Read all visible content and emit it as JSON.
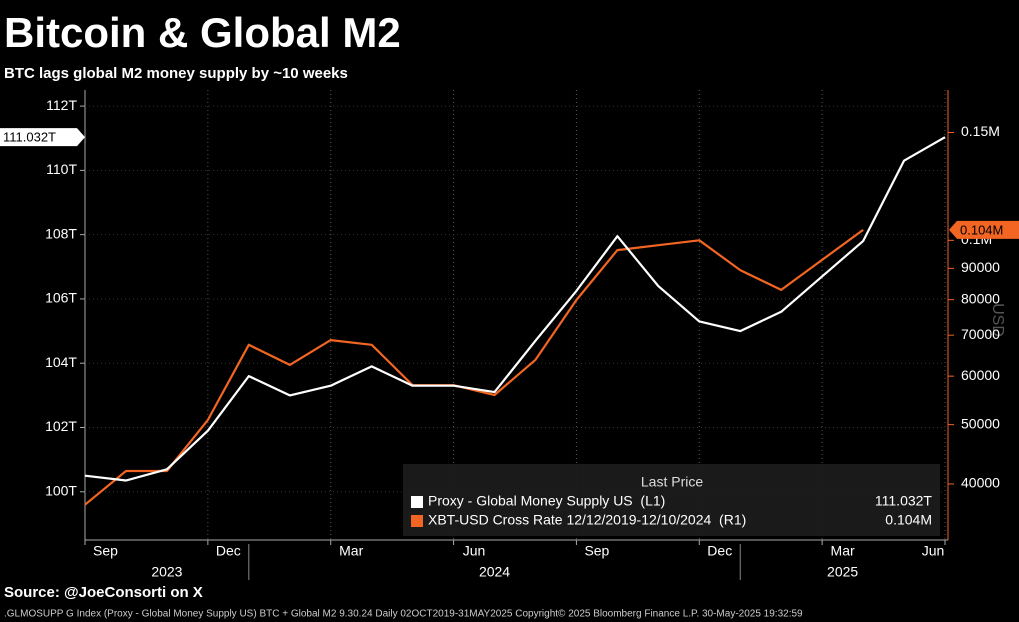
{
  "chart_data": {
    "type": "line",
    "title": "Bitcoin & Global M2",
    "subtitle": "BTC lags global M2 money supply by ~10 weeks",
    "source": "Source: @JoeConsorti on X",
    "footer": ".GLMOSUPP G Index (Proxy - Global Money Supply US) BTC + Global M2 9.30.24  Daily 02OCT2019-31MAY2025 Copyright© 2025 Bloomberg Finance L.P. 30-May-2025 19:32:59",
    "y2label": "USD",
    "legend_title": "Last Price",
    "x": [
      "2023-09",
      "2023-10",
      "2023-11",
      "2023-12",
      "2024-01",
      "2024-02",
      "2024-03",
      "2024-04",
      "2024-05",
      "2024-06",
      "2024-07",
      "2024-08",
      "2024-09",
      "2024-10",
      "2024-11",
      "2024-12",
      "2025-01",
      "2025-02",
      "2025-03",
      "2025-04",
      "2025-05",
      "2025-06"
    ],
    "xlim": [
      "2023-09",
      "2025-06"
    ],
    "xticks": [
      {
        "value": "2023-09",
        "label": "Sep"
      },
      {
        "value": "2023-12",
        "label": "Dec"
      },
      {
        "value": "2024-03",
        "label": "Mar"
      },
      {
        "value": "2024-06",
        "label": "Jun"
      },
      {
        "value": "2024-09",
        "label": "Sep"
      },
      {
        "value": "2024-12",
        "label": "Dec"
      },
      {
        "value": "2025-03",
        "label": "Mar"
      },
      {
        "value": "2025-06",
        "label": "Jun"
      }
    ],
    "xyears": [
      "2023",
      "2024",
      "2025"
    ],
    "ylim": [
      98.5,
      112.5
    ],
    "yticks": [
      {
        "value": 100,
        "label": "100T"
      },
      {
        "value": 102,
        "label": "102T"
      },
      {
        "value": 104,
        "label": "104T"
      },
      {
        "value": 106,
        "label": "106T"
      },
      {
        "value": 108,
        "label": "108T"
      },
      {
        "value": 110,
        "label": "110T"
      },
      {
        "value": 112,
        "label": "112T"
      }
    ],
    "y2lim": [
      32400,
      176000
    ],
    "y2log": true,
    "y2ticks": [
      40000,
      50000,
      60000,
      70000,
      80000,
      90000,
      {
        "value": 100000,
        "label": "0.1M"
      },
      {
        "value": 150000,
        "label": "0.15M"
      }
    ],
    "grid": true,
    "series": [
      {
        "name": "Proxy - Global Money Supply US  (L1)",
        "color": "#ffffff",
        "axis": "y",
        "last_value": 111.032,
        "last_label": "111.032T",
        "values": [
          100.5,
          100.35,
          100.7,
          101.9,
          103.6,
          103.0,
          103.3,
          103.9,
          103.3,
          103.3,
          103.1,
          104.7,
          106.25,
          107.95,
          106.4,
          105.3,
          105.0,
          105.6,
          106.7,
          107.8,
          110.3,
          111.032
        ]
      },
      {
        "name": "XBT-USD Cross Rate 12/12/2019-12/10/2024  (R1)",
        "color": "#f26522",
        "axis": "y2",
        "last_value": 104000,
        "last_label": "0.104M",
        "values": [
          37000,
          42000,
          42000,
          50900,
          67500,
          62600,
          68700,
          67500,
          58000,
          58000,
          55900,
          63800,
          79900,
          96400,
          98200,
          100000,
          89400,
          83000,
          92900,
          104000,
          null,
          null
        ]
      }
    ]
  }
}
